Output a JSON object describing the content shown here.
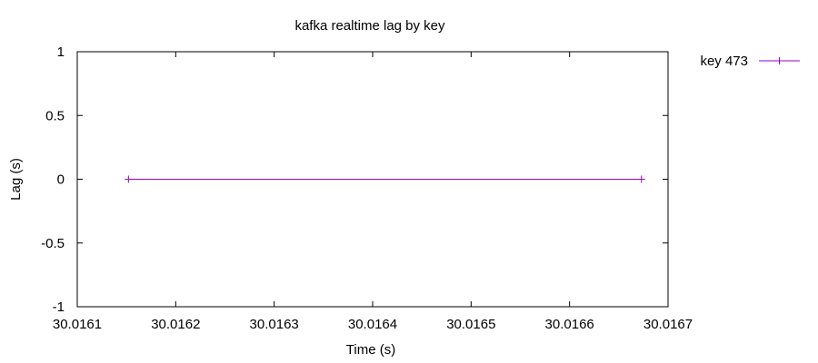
{
  "chart_data": {
    "type": "line",
    "title": "kafka realtime lag by key",
    "xlabel": "Time (s)",
    "ylabel": "Lag (s)",
    "xlim": [
      30.0161,
      30.0167
    ],
    "ylim": [
      -1,
      1
    ],
    "xticks": [
      30.0161,
      30.0162,
      30.0163,
      30.0164,
      30.0165,
      30.0166,
      30.0167
    ],
    "xtick_labels": [
      "30.0161",
      "30.0162",
      "30.0163",
      "30.0164",
      "30.0165",
      "30.0166",
      "30.0167"
    ],
    "yticks": [
      1,
      0.5,
      0,
      -0.5,
      -1
    ],
    "ytick_labels": [
      "1",
      "0.5",
      "0",
      "-0.5",
      "-1"
    ],
    "grid": false,
    "legend_position": "top-right outside",
    "series": [
      {
        "name": "key 473",
        "color": "#9400d3",
        "marker": "plus",
        "x": [
          30.016152,
          30.016673
        ],
        "y": [
          0,
          0
        ]
      }
    ]
  }
}
